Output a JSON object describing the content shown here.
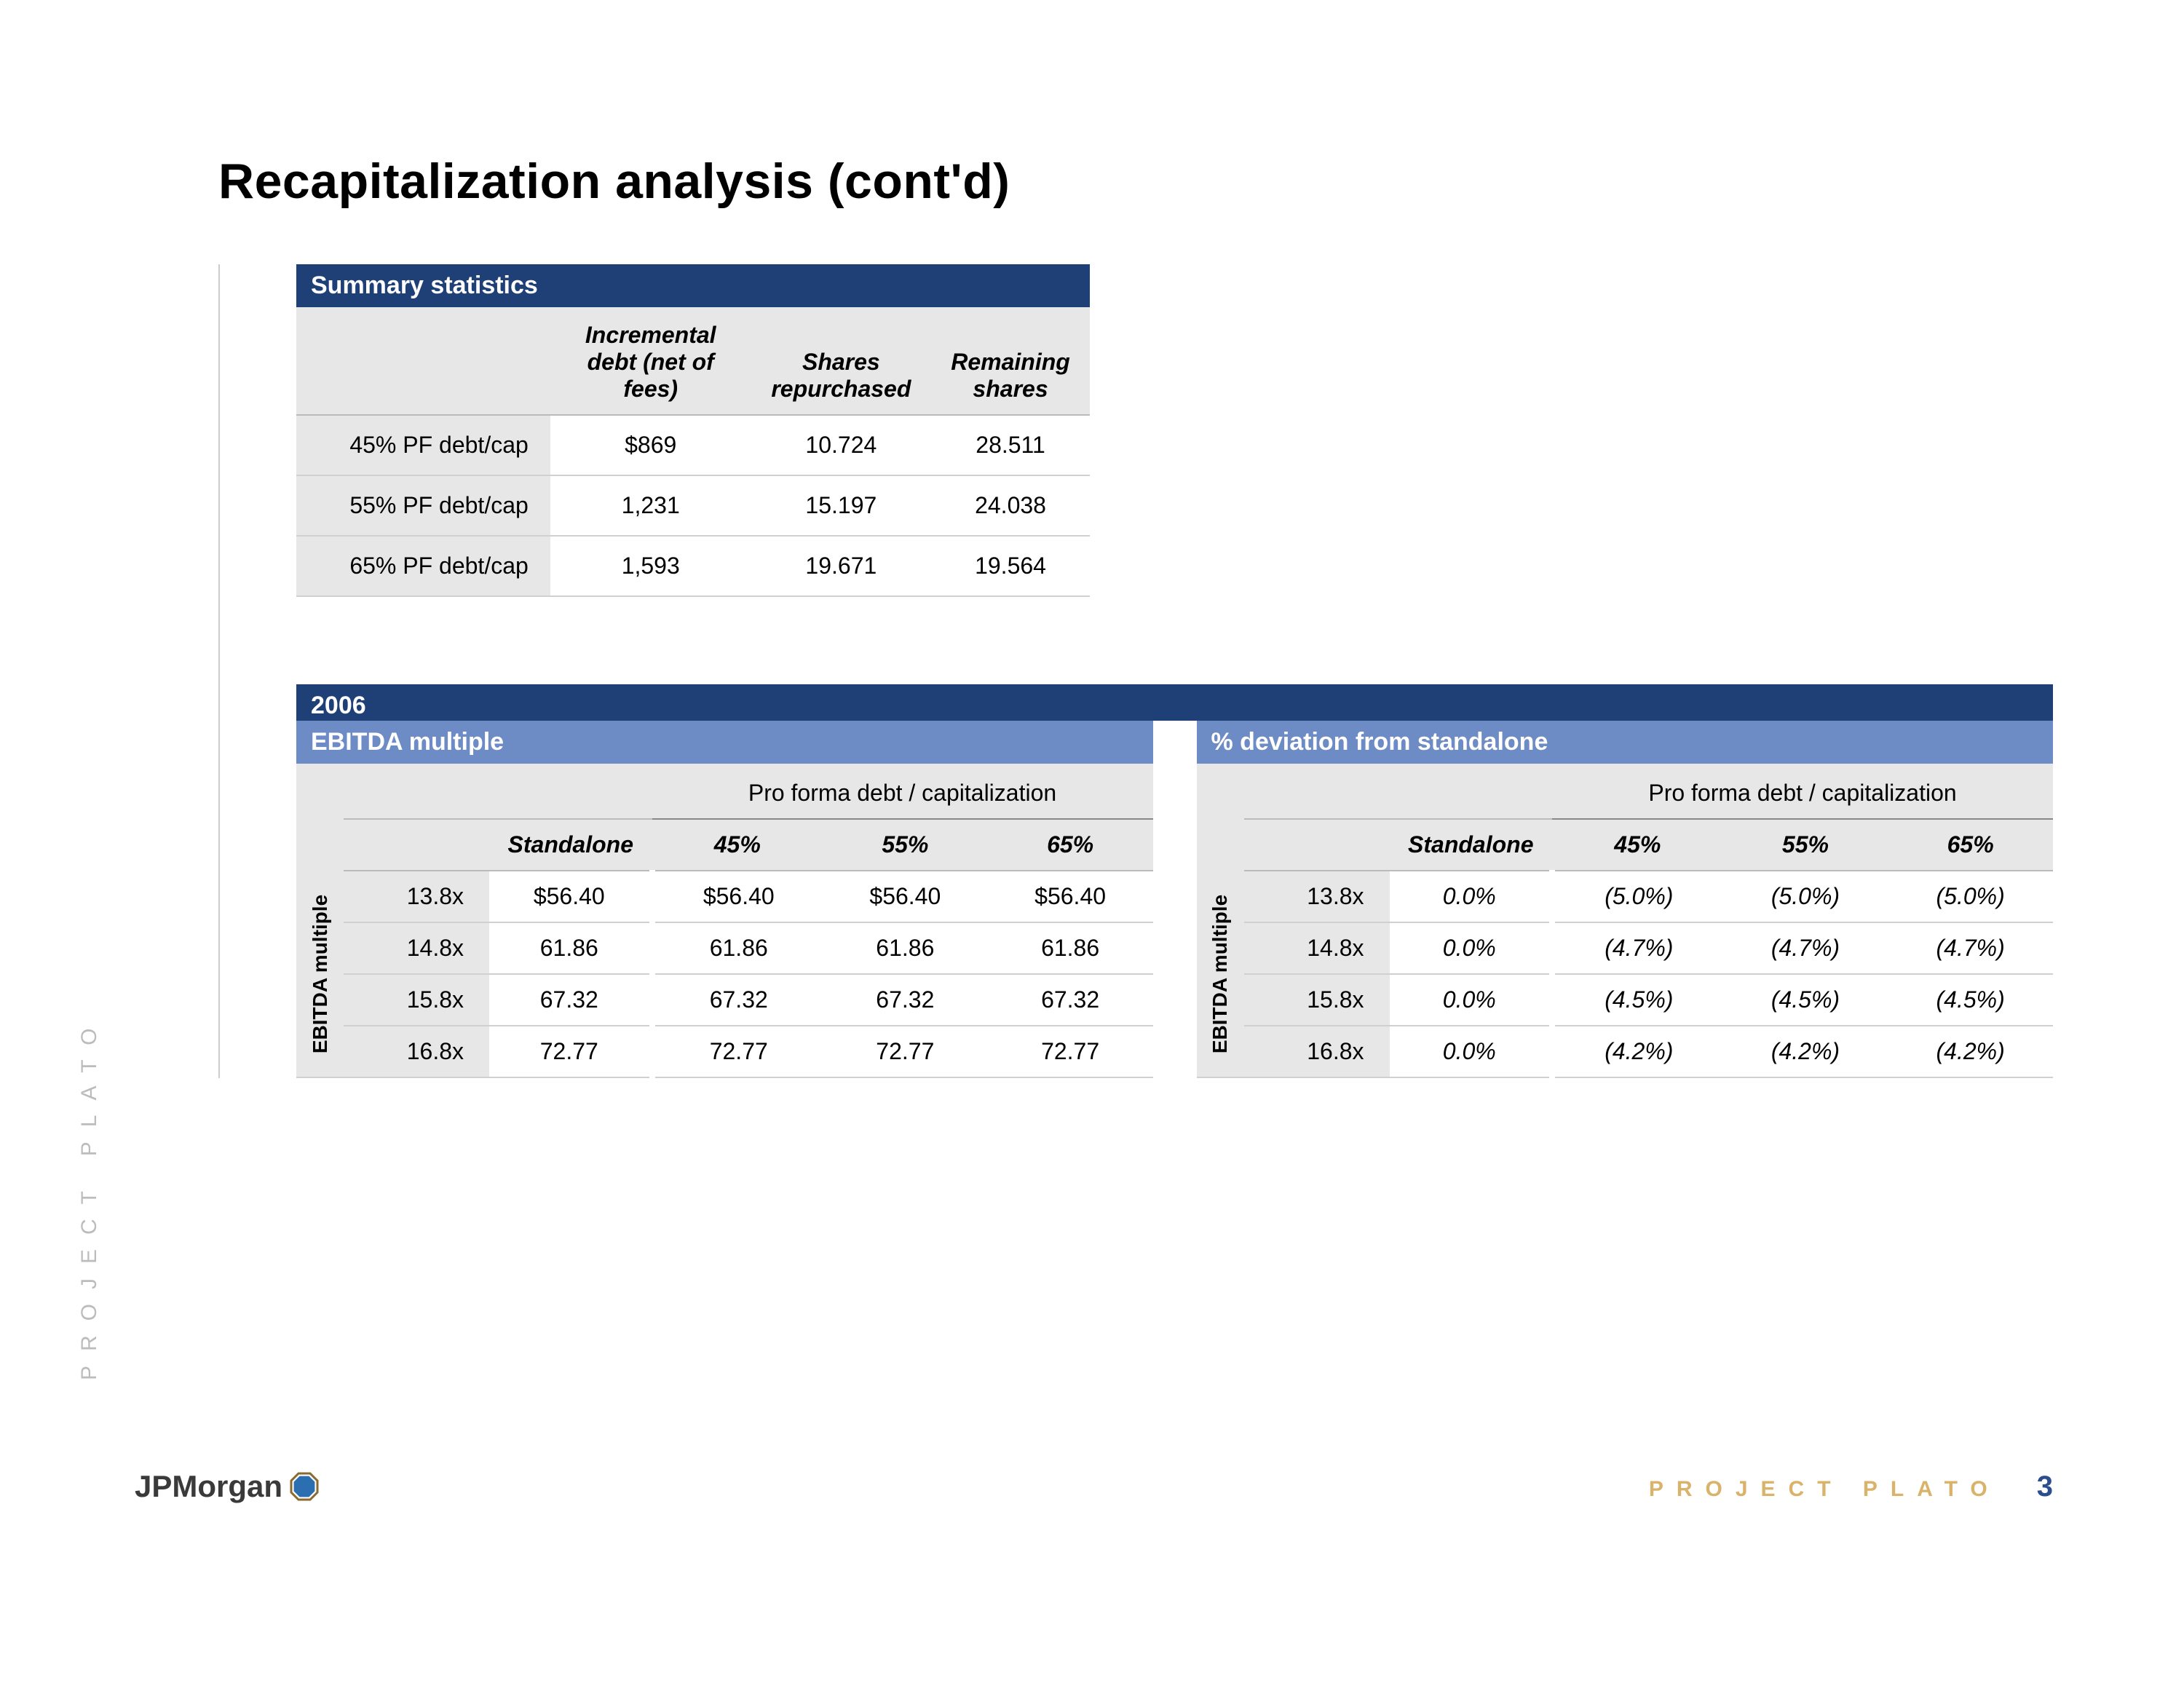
{
  "colors": {
    "banner_dark": "#1f3f77",
    "banner_light": "#6d8bc4",
    "header_bg": "#e7e7e7",
    "row_border": "#d0d0d0",
    "accent_gold": "#d9b36a",
    "side_gray": "#bcbcbc",
    "text": "#000000",
    "background": "#ffffff"
  },
  "page": {
    "title": "Recapitalization analysis (cont'd)",
    "side_label": "PROJECT PLATO",
    "footer_project": "PROJECT PLATO",
    "page_number": "3",
    "logo_text": "JPMorgan"
  },
  "summary": {
    "banner": "Summary statistics",
    "columns": [
      "Incremental debt (net of fees)",
      "Shares repurchased",
      "Remaining shares"
    ],
    "rows": [
      {
        "label": "45% PF debt/cap",
        "values": [
          "$869",
          "10.724",
          "28.511"
        ]
      },
      {
        "label": "55% PF debt/cap",
        "values": [
          "1,231",
          "15.197",
          "24.038"
        ]
      },
      {
        "label": "65% PF debt/cap",
        "values": [
          "1,593",
          "19.671",
          "19.564"
        ]
      }
    ]
  },
  "year": {
    "banner": "2006",
    "group_header": "Pro forma debt / capitalization",
    "first_col_header": "Standalone",
    "scenario_cols": [
      "45%",
      "55%",
      "65%"
    ],
    "side_label": "EBITDA multiple",
    "left": {
      "sub_banner": "EBITDA multiple",
      "rows": [
        {
          "label": "13.8x",
          "standalone": "$56.40",
          "values": [
            "$56.40",
            "$56.40",
            "$56.40"
          ]
        },
        {
          "label": "14.8x",
          "standalone": "61.86",
          "values": [
            "61.86",
            "61.86",
            "61.86"
          ]
        },
        {
          "label": "15.8x",
          "standalone": "67.32",
          "values": [
            "67.32",
            "67.32",
            "67.32"
          ]
        },
        {
          "label": "16.8x",
          "standalone": "72.77",
          "values": [
            "72.77",
            "72.77",
            "72.77"
          ]
        }
      ]
    },
    "right": {
      "sub_banner": "% deviation from standalone",
      "rows": [
        {
          "label": "13.8x",
          "standalone": "0.0%",
          "values": [
            "(5.0%)",
            "(5.0%)",
            "(5.0%)"
          ]
        },
        {
          "label": "14.8x",
          "standalone": "0.0%",
          "values": [
            "(4.7%)",
            "(4.7%)",
            "(4.7%)"
          ]
        },
        {
          "label": "15.8x",
          "standalone": "0.0%",
          "values": [
            "(4.5%)",
            "(4.5%)",
            "(4.5%)"
          ]
        },
        {
          "label": "16.8x",
          "standalone": "0.0%",
          "values": [
            "(4.2%)",
            "(4.2%)",
            "(4.2%)"
          ]
        }
      ]
    }
  }
}
